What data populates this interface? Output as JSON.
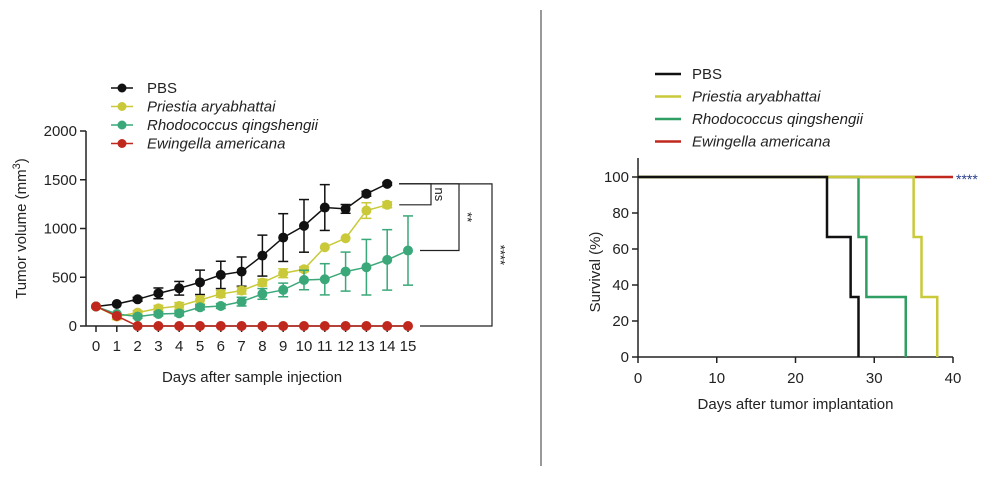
{
  "chart_data": [
    {
      "type": "line",
      "xlabel": "Days after sample injection",
      "ylabel": "Tumor volume (mm",
      "ylabel_sup": "3",
      "ylabel_close": ")",
      "xlim": [
        0,
        15
      ],
      "ylim": [
        0,
        2000
      ],
      "xticks": [
        "0",
        "1",
        "2",
        "3",
        "4",
        "5",
        "6",
        "7",
        "8",
        "9",
        "10",
        "11",
        "12",
        "13",
        "14",
        "15"
      ],
      "yticks": [
        "0",
        "500",
        "1000",
        "1500",
        "2000"
      ],
      "grid": false,
      "legend_placement": "top-left",
      "series": [
        {
          "name": "PBS",
          "italic": false,
          "color": "#111111",
          "x": [
            0,
            1,
            2,
            3,
            4,
            5,
            6,
            7,
            8,
            9,
            10,
            11,
            12,
            13,
            14
          ],
          "y": [
            200,
            226,
            274,
            335,
            387,
            448,
            524,
            558,
            722,
            907,
            1027,
            1215,
            1201,
            1356,
            1458
          ],
          "err": [
            0,
            0,
            20,
            55,
            70,
            125,
            140,
            150,
            210,
            245,
            270,
            235,
            45,
            25,
            15
          ]
        },
        {
          "name": "Priestia aryabhattai",
          "italic": true,
          "color": "#c9c93a",
          "x": [
            0,
            1,
            2,
            3,
            4,
            5,
            6,
            7,
            8,
            9,
            10,
            11,
            12,
            13,
            14
          ],
          "y": [
            200,
            96,
            137,
            181,
            205,
            267,
            329,
            363,
            445,
            541,
            582,
            808,
            900,
            1184,
            1243
          ],
          "err": [
            0,
            30,
            20,
            30,
            35,
            40,
            35,
            35,
            35,
            45,
            25,
            0,
            0,
            80,
            30
          ]
        },
        {
          "name": "Rhodococcus qingshengii",
          "italic": true,
          "color": "#3aa878",
          "x": [
            0,
            1,
            2,
            3,
            4,
            5,
            6,
            7,
            8,
            9,
            10,
            11,
            12,
            13,
            14,
            15
          ],
          "y": [
            200,
            123,
            96,
            123,
            130,
            192,
            205,
            250,
            329,
            370,
            472,
            479,
            558,
            603,
            678,
            774
          ],
          "err": [
            0,
            0,
            15,
            20,
            25,
            25,
            25,
            45,
            55,
            70,
            100,
            160,
            200,
            285,
            310,
            355
          ]
        },
        {
          "name": "Ewingella americana",
          "italic": false,
          "color": "#c0281e",
          "italic_label": true,
          "x": [
            0,
            1,
            2,
            3,
            4,
            5,
            6,
            7,
            8,
            9,
            10,
            11,
            12,
            13,
            14,
            15
          ],
          "y": [
            200,
            103,
            0,
            0,
            0,
            0,
            0,
            0,
            0,
            0,
            0,
            0,
            0,
            0,
            0,
            0
          ],
          "err": [
            0,
            0,
            0,
            0,
            0,
            0,
            0,
            0,
            0,
            0,
            0,
            0,
            0,
            0,
            0,
            0
          ]
        }
      ],
      "significance": [
        {
          "label": "ns",
          "between": [
            "PBS",
            "Priestia aryabhattai"
          ]
        },
        {
          "label": "**",
          "between": [
            "PBS",
            "Rhodococcus qingshengii"
          ]
        },
        {
          "label": "****",
          "between": [
            "PBS",
            "Ewingella americana"
          ]
        }
      ]
    },
    {
      "type": "line",
      "subtype": "step",
      "xlabel": "Days after tumor implantation",
      "ylabel": "Survival (%)",
      "xlim": [
        0,
        40
      ],
      "ylim": [
        0,
        100
      ],
      "xticks": [
        "0",
        "10",
        "20",
        "30",
        "40"
      ],
      "yticks": [
        "0",
        "20",
        "40",
        "60",
        "80",
        "100"
      ],
      "grid": false,
      "legend_placement": "top",
      "series": [
        {
          "name": "PBS",
          "italic": false,
          "color": "#111111",
          "x": [
            0,
            24,
            27,
            28
          ],
          "y": [
            100,
            66.7,
            33.3,
            0
          ]
        },
        {
          "name": "Priestia aryabhattai",
          "italic": true,
          "color": "#c9c93a",
          "x": [
            0,
            35,
            36,
            38
          ],
          "y": [
            100,
            66.7,
            33.3,
            0
          ]
        },
        {
          "name": "Rhodococcus qingshengii",
          "italic": true,
          "color": "#2e9e62",
          "x": [
            0,
            28,
            29,
            34
          ],
          "y": [
            100,
            66.7,
            33.3,
            0
          ]
        },
        {
          "name": "Ewingella americana",
          "italic": true,
          "color": "#c0281e",
          "x": [
            0,
            40
          ],
          "y": [
            100,
            100
          ]
        }
      ],
      "annotation": "****",
      "annotation_color": "#2a3f8f"
    }
  ]
}
